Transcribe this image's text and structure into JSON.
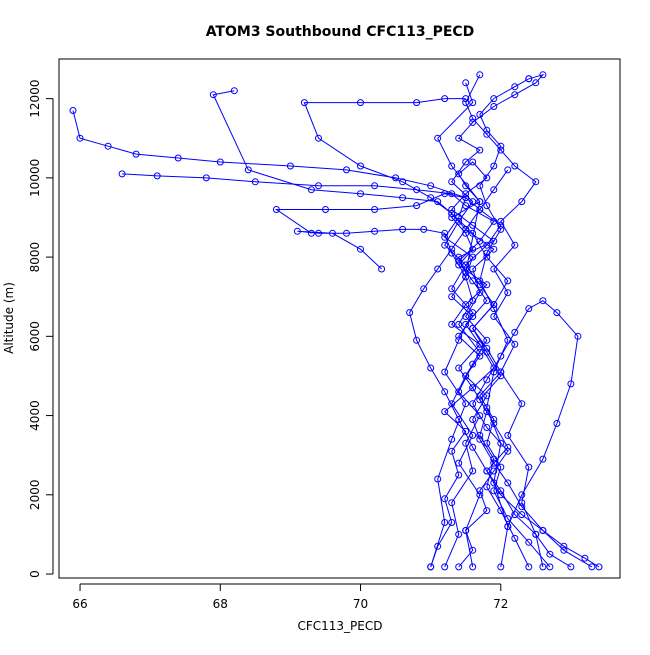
{
  "chart_data": {
    "type": "line",
    "title": "ATOM3 Southbound CFC113_PECD",
    "xlabel": "CFC113_PECD",
    "ylabel": "Altitude (m)",
    "xlim": [
      65.7,
      73.7
    ],
    "ylim": [
      -100,
      13000
    ],
    "xticks": [
      66,
      68,
      70,
      72
    ],
    "yticks": [
      0,
      2000,
      4000,
      6000,
      8000,
      10000,
      12000
    ],
    "grid": false,
    "legend": "none",
    "marker": "open-circle",
    "color": "#0000ff",
    "series": [
      {
        "x": [
          71.0,
          71.1,
          71.3,
          71.2,
          71.4,
          71.3,
          71.5,
          71.2,
          71.6,
          71.4,
          71.7,
          71.3,
          71.5,
          71.8,
          71.4,
          71.6,
          71.5,
          71.3,
          71.7,
          71.5,
          71.4,
          71.6,
          71.8,
          71.5,
          71.3,
          71.6,
          71.9,
          71.4,
          71.5,
          71.7,
          71.3,
          71.1,
          71.6,
          71.5
        ],
        "y": [
          180,
          700,
          1300,
          1900,
          2500,
          3100,
          3600,
          4100,
          4700,
          5200,
          5800,
          6300,
          6800,
          7300,
          7800,
          8200,
          8600,
          9000,
          9400,
          9800,
          10100,
          10400,
          10000,
          9600,
          9200,
          8800,
          8400,
          8000,
          7600,
          9400,
          10300,
          11000,
          11900,
          12400
        ]
      },
      {
        "x": [
          73.3,
          72.9,
          72.6,
          72.3,
          72.1,
          71.9,
          71.7,
          71.6,
          71.8,
          71.5,
          71.7,
          71.4,
          71.6,
          71.3,
          71.5,
          71.6,
          71.2,
          71.4,
          71.5,
          71.0,
          70.5,
          69.8,
          69.0,
          68.0,
          67.4,
          66.8,
          66.4,
          66.0,
          65.9
        ],
        "y": [
          180,
          600,
          1100,
          1700,
          2300,
          2800,
          3400,
          3900,
          4500,
          5000,
          5500,
          6000,
          6500,
          7000,
          7500,
          8000,
          8500,
          9000,
          9500,
          9800,
          10000,
          10200,
          10300,
          10400,
          10500,
          10600,
          10800,
          11000,
          11700
        ]
      },
      {
        "x": [
          72.4,
          72.2,
          72.0,
          71.8,
          71.9,
          71.7,
          71.8,
          71.6,
          71.9,
          71.7,
          71.5,
          71.8,
          71.6,
          71.4,
          71.7,
          71.9,
          71.5,
          71.3,
          70.8,
          70.2,
          69.4,
          68.5,
          67.8,
          67.1,
          66.6
        ],
        "y": [
          180,
          900,
          1600,
          2200,
          2900,
          3500,
          4100,
          4700,
          5200,
          5800,
          6300,
          6900,
          7400,
          7900,
          8400,
          8900,
          9300,
          9600,
          9700,
          9800,
          9800,
          9900,
          10000,
          10050,
          10100
        ]
      },
      {
        "x": [
          71.2,
          71.4,
          71.3,
          71.6,
          71.5,
          71.7,
          71.4,
          71.6,
          71.8,
          71.5,
          71.7,
          71.6,
          71.9,
          71.5,
          71.3,
          71.1,
          70.6,
          70.0,
          69.3,
          68.4,
          67.9,
          68.2
        ],
        "y": [
          180,
          1000,
          1800,
          2600,
          3300,
          4000,
          4600,
          5300,
          5900,
          6500,
          7100,
          7700,
          8200,
          8700,
          9100,
          9400,
          9500,
          9600,
          9700,
          10200,
          12100,
          12200
        ]
      },
      {
        "x": [
          72.7,
          72.4,
          72.1,
          71.9,
          72.0,
          71.8,
          71.9,
          71.7,
          72.0,
          71.8,
          71.6,
          71.9,
          71.7,
          71.5,
          71.8,
          72.0,
          71.7,
          71.5,
          71.2,
          70.8,
          70.2,
          69.5,
          68.8,
          69.3
        ],
        "y": [
          180,
          800,
          1400,
          2100,
          2700,
          3300,
          3900,
          4500,
          5100,
          5700,
          6200,
          6800,
          7300,
          7800,
          8300,
          8800,
          9200,
          9500,
          9600,
          9300,
          9200,
          9200,
          9200,
          8600
        ]
      },
      {
        "x": [
          71.6,
          71.5,
          71.7,
          71.4,
          71.6,
          71.3,
          71.5,
          71.7,
          71.4,
          71.6,
          71.5,
          71.3,
          71.2,
          70.9,
          70.6,
          70.2,
          69.8,
          69.4,
          69.1,
          69.6,
          70.0,
          70.3
        ],
        "y": [
          180,
          1100,
          2000,
          2800,
          3500,
          4300,
          5000,
          5600,
          6300,
          6900,
          7500,
          8100,
          8600,
          8700,
          8700,
          8650,
          8600,
          8600,
          8650,
          8600,
          8200,
          7700
        ]
      },
      {
        "x": [
          73.0,
          72.7,
          72.5,
          72.2,
          72.0,
          71.8,
          72.1,
          71.9,
          71.7,
          72.0,
          71.8,
          71.6,
          71.9,
          72.1,
          71.8,
          71.6,
          71.3,
          71.0,
          70.6,
          70.0,
          69.4,
          69.2,
          70.0,
          70.8,
          71.2,
          71.5
        ],
        "y": [
          180,
          500,
          1000,
          1500,
          2100,
          2600,
          3200,
          3800,
          4400,
          5000,
          5600,
          6200,
          6800,
          7400,
          8000,
          8600,
          9100,
          9500,
          9900,
          10300,
          11000,
          11900,
          11900,
          11900,
          12000,
          12000
        ]
      },
      {
        "x": [
          71.0,
          71.2,
          71.1,
          71.3,
          71.5,
          71.2,
          71.4,
          71.6,
          71.3,
          71.5,
          71.2,
          71.4,
          71.6,
          71.3,
          71.5,
          71.7,
          71.4,
          71.6,
          71.9,
          72.2,
          72.5,
          72.6,
          72.4
        ],
        "y": [
          180,
          1300,
          2400,
          3400,
          4300,
          5100,
          5900,
          6600,
          7200,
          7800,
          8300,
          8900,
          9400,
          9900,
          10400,
          10700,
          11000,
          11400,
          11800,
          12100,
          12400,
          12600,
          12500
        ]
      },
      {
        "x": [
          72.0,
          72.1,
          71.9,
          72.0,
          71.8,
          71.9,
          72.1,
          71.9,
          71.7,
          71.8,
          72.0,
          71.8,
          71.7,
          71.9,
          72.0,
          71.8,
          71.7,
          71.9,
          72.2,
          72.4
        ],
        "y": [
          180,
          1200,
          2300,
          3300,
          4200,
          5100,
          5900,
          6700,
          7400,
          8100,
          8700,
          9300,
          9800,
          10300,
          10800,
          11200,
          11600,
          12000,
          12300,
          12500
        ]
      },
      {
        "x": [
          72.6,
          72.5,
          72.3,
          72.4,
          72.1,
          72.3,
          72.0,
          72.2,
          71.9,
          72.1,
          71.9,
          72.2,
          72.0,
          72.3,
          72.5,
          72.2,
          72.0,
          71.8,
          71.6,
          71.5,
          71.7
        ],
        "y": [
          180,
          1000,
          1800,
          2700,
          3500,
          4300,
          5100,
          5800,
          6500,
          7100,
          7700,
          8300,
          8900,
          9400,
          9900,
          10300,
          10700,
          11100,
          11500,
          11900,
          12600
        ]
      },
      {
        "x": [
          71.4,
          71.6,
          71.5,
          71.8,
          71.7,
          71.9,
          72.1,
          71.8,
          71.6,
          71.8,
          72.0,
          72.2,
          72.4,
          72.6,
          72.8,
          73.1,
          73.0,
          72.8,
          72.6,
          72.3,
          72.1
        ],
        "y": [
          180,
          600,
          1100,
          1600,
          2100,
          2600,
          3100,
          3700,
          4300,
          4900,
          5500,
          6100,
          6700,
          6900,
          6600,
          6000,
          4800,
          3800,
          2900,
          2000,
          1200
        ]
      },
      {
        "x": [
          73.4,
          73.2,
          72.9,
          72.6,
          72.3,
          72.0,
          71.8,
          71.6,
          71.4,
          71.2,
          71.0,
          70.8,
          70.7,
          70.9,
          71.1,
          71.3,
          71.5,
          71.7,
          71.9,
          72.1
        ],
        "y": [
          180,
          400,
          700,
          1100,
          1500,
          2000,
          2600,
          3200,
          3900,
          4600,
          5200,
          5900,
          6600,
          7200,
          7700,
          8200,
          8700,
          9200,
          9700,
          10200
        ]
      }
    ]
  }
}
